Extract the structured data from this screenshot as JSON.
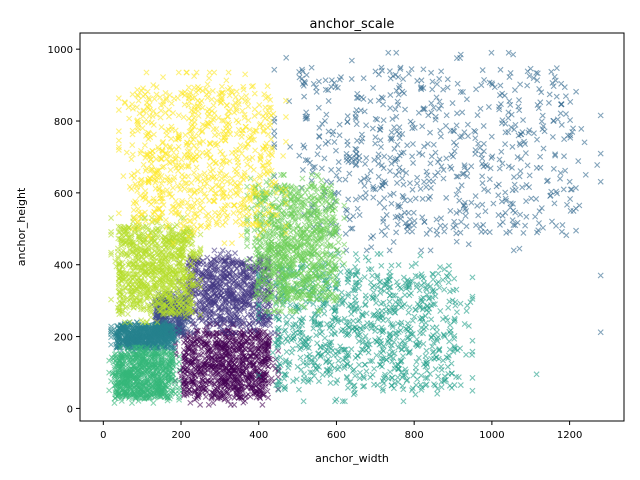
{
  "chart_data": {
    "type": "scatter",
    "title": "anchor_scale",
    "xlabel": "anchor_width",
    "ylabel": "anchor_height",
    "xlim": [
      -60,
      1340
    ],
    "ylim": [
      -35,
      1045
    ],
    "xticks": [
      0,
      200,
      400,
      600,
      800,
      1000,
      1200
    ],
    "yticks": [
      0,
      200,
      400,
      600,
      800,
      1000
    ],
    "grid": false,
    "legend": "none",
    "marker": "x",
    "series": [
      {
        "color": "#440154",
        "x_range": [
          185,
          450
        ],
        "y_range": [
          10,
          235
        ],
        "count": 900
      },
      {
        "color": "#482878",
        "x_range": [
          245,
          440
        ],
        "y_range": [
          290,
          325
        ],
        "count": 10
      },
      {
        "color": "#443983",
        "x_range": [
          195,
          450
        ],
        "y_range": [
          210,
          440
        ],
        "count": 750
      },
      {
        "color": "#3e4c8a",
        "x_range": [
          125,
          225
        ],
        "y_range": [
          190,
          320
        ],
        "count": 350
      },
      {
        "color": "#31688e",
        "x_range": [
          440,
          1280
        ],
        "y_range": [
          440,
          990
        ],
        "count": 700
      },
      {
        "color": "#26828e",
        "x_range": [
          20,
          195
        ],
        "y_range": [
          160,
          240
        ],
        "count": 650
      },
      {
        "color": "#1f9e89",
        "x_range": [
          400,
          950
        ],
        "y_range": [
          20,
          430
        ],
        "count": 900
      },
      {
        "color": "#35b779",
        "x_range": [
          15,
          195
        ],
        "y_range": [
          15,
          170
        ],
        "count": 750
      },
      {
        "color": "#6ece58",
        "x_range": [
          370,
          620
        ],
        "y_range": [
          270,
          650
        ],
        "count": 950
      },
      {
        "color": "#b5de2b",
        "x_range": [
          20,
          250
        ],
        "y_range": [
          240,
          530
        ],
        "count": 900
      },
      {
        "color": "#fde725",
        "x_range": [
          40,
          470
        ],
        "y_range": [
          460,
          935
        ],
        "count": 800
      }
    ],
    "outliers": [
      {
        "x": 1280,
        "y": 370,
        "color": "#31688e"
      },
      {
        "x": 1280,
        "y": 212,
        "color": "#31688e"
      },
      {
        "x": 1225,
        "y": 565,
        "color": "#31688e"
      },
      {
        "x": 1115,
        "y": 95,
        "color": "#1f9e89"
      },
      {
        "x": 1060,
        "y": 545,
        "color": "#31688e"
      },
      {
        "x": 1060,
        "y": 510,
        "color": "#31688e"
      },
      {
        "x": 1000,
        "y": 905,
        "color": "#31688e"
      },
      {
        "x": 920,
        "y": 985,
        "color": "#31688e"
      },
      {
        "x": 910,
        "y": 975,
        "color": "#31688e"
      },
      {
        "x": 950,
        "y": 85,
        "color": "#1f9e89"
      },
      {
        "x": 920,
        "y": 65,
        "color": "#1f9e89"
      },
      {
        "x": 930,
        "y": 235,
        "color": "#1f9e89"
      },
      {
        "x": 215,
        "y": 935,
        "color": "#fde725"
      },
      {
        "x": 360,
        "y": 895,
        "color": "#fde725"
      },
      {
        "x": 90,
        "y": 870,
        "color": "#fde725"
      },
      {
        "x": 600,
        "y": 25,
        "color": "#1f9e89"
      }
    ]
  }
}
